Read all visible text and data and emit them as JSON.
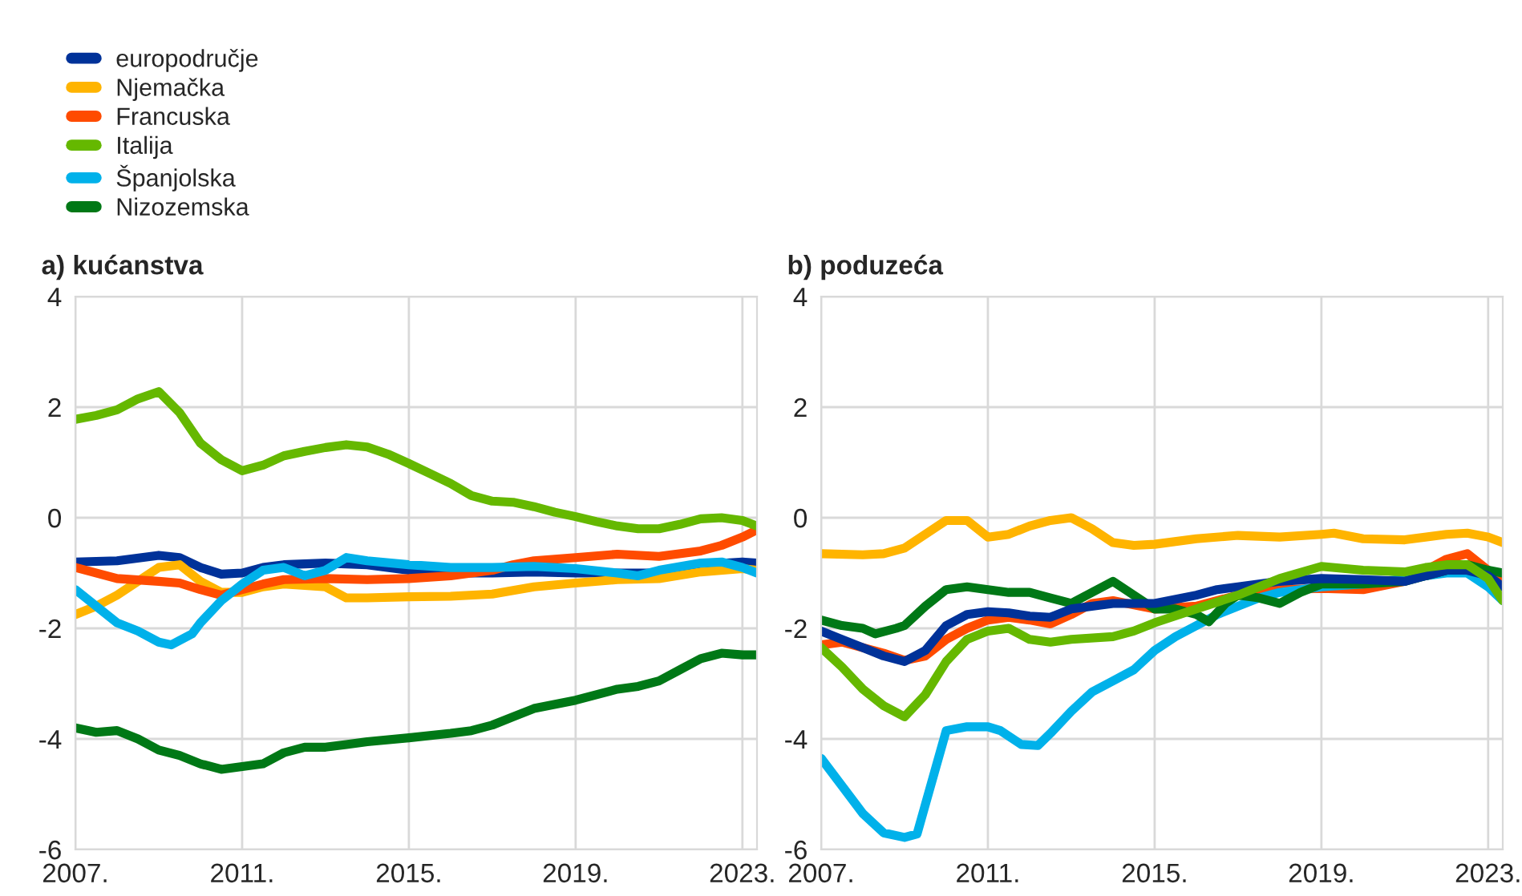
{
  "chart_data": [
    {
      "type": "line",
      "title": "a) kućanstva",
      "legend": "top left",
      "grid": true,
      "xlim": [
        2007,
        2023.35
      ],
      "ylim": [
        -6,
        4
      ],
      "xticks": [
        {
          "value": 2007,
          "label": "2007."
        },
        {
          "value": 2011,
          "label": "2011."
        },
        {
          "value": 2015,
          "label": "2015."
        },
        {
          "value": 2019,
          "label": "2019."
        },
        {
          "value": 2023,
          "label": "2023."
        }
      ],
      "yticks": [
        -6,
        -4,
        -2,
        0,
        2,
        4
      ],
      "series": [
        {
          "name": "europodručje",
          "color": "#003299",
          "x": [
            2007,
            2008,
            2009,
            2009.5,
            2010,
            2010.5,
            2011,
            2011.5,
            2012,
            2013,
            2014,
            2015,
            2016,
            2017,
            2018,
            2019,
            2020,
            2021,
            2022,
            2023,
            2023.35
          ],
          "values": [
            -0.8,
            -0.78,
            -0.68,
            -0.72,
            -0.9,
            -1.02,
            -1.0,
            -0.9,
            -0.85,
            -0.82,
            -0.85,
            -0.95,
            -1.0,
            -1.0,
            -0.98,
            -1.0,
            -1.0,
            -1.0,
            -0.85,
            -0.8,
            -0.82
          ]
        },
        {
          "name": "Njemačka",
          "color": "#ffb400",
          "x": [
            2007,
            2007.5,
            2008,
            2008.5,
            2009,
            2009.5,
            2010,
            2010.5,
            2011,
            2011.5,
            2012,
            2013,
            2013.5,
            2014,
            2015,
            2016,
            2017,
            2018,
            2019,
            2020,
            2021,
            2022,
            2023,
            2023.35
          ],
          "values": [
            -1.75,
            -1.6,
            -1.4,
            -1.15,
            -0.9,
            -0.85,
            -1.15,
            -1.35,
            -1.35,
            -1.25,
            -1.2,
            -1.25,
            -1.45,
            -1.45,
            -1.43,
            -1.42,
            -1.38,
            -1.25,
            -1.18,
            -1.12,
            -1.1,
            -0.98,
            -0.92,
            -0.95
          ]
        },
        {
          "name": "Francuska",
          "color": "#ff4b00",
          "x": [
            2007,
            2008,
            2009,
            2009.5,
            2010,
            2010.5,
            2011,
            2011.5,
            2012,
            2013,
            2014,
            2015,
            2016,
            2017,
            2017.5,
            2018,
            2019,
            2020,
            2021,
            2022,
            2022.5,
            2023,
            2023.35
          ],
          "values": [
            -0.9,
            -1.1,
            -1.15,
            -1.18,
            -1.3,
            -1.4,
            -1.3,
            -1.2,
            -1.12,
            -1.1,
            -1.12,
            -1.1,
            -1.05,
            -0.95,
            -0.85,
            -0.78,
            -0.72,
            -0.66,
            -0.7,
            -0.6,
            -0.5,
            -0.35,
            -0.22
          ]
        },
        {
          "name": "Italija",
          "color": "#65b800",
          "x": [
            2007,
            2007.5,
            2008,
            2008.5,
            2009,
            2009.5,
            2010,
            2010.5,
            2011,
            2011.5,
            2012,
            2012.5,
            2013,
            2013.5,
            2014,
            2014.5,
            2015,
            2015.5,
            2016,
            2016.5,
            2017,
            2017.5,
            2018,
            2018.5,
            2019,
            2019.5,
            2020,
            2020.5,
            2021,
            2021.5,
            2022,
            2022.5,
            2023,
            2023.35
          ],
          "values": [
            1.78,
            1.85,
            1.95,
            2.15,
            2.28,
            1.9,
            1.35,
            1.05,
            0.85,
            0.95,
            1.12,
            1.2,
            1.27,
            1.32,
            1.28,
            1.15,
            0.98,
            0.8,
            0.62,
            0.4,
            0.3,
            0.28,
            0.2,
            0.1,
            0.02,
            -0.07,
            -0.15,
            -0.2,
            -0.2,
            -0.12,
            -0.02,
            0.0,
            -0.05,
            -0.15
          ]
        },
        {
          "name": "Španjolska",
          "color": "#00b1ea",
          "x": [
            2007,
            2007.5,
            2008,
            2008.5,
            2009,
            2009.3,
            2009.8,
            2010,
            2010.5,
            2011,
            2011.5,
            2012,
            2012.5,
            2013,
            2013.5,
            2014,
            2015,
            2016,
            2017,
            2018,
            2019,
            2020,
            2020.5,
            2021,
            2022,
            2022.5,
            2023,
            2023.35
          ],
          "values": [
            -1.3,
            -1.6,
            -1.9,
            -2.05,
            -2.25,
            -2.3,
            -2.1,
            -1.9,
            -1.5,
            -1.2,
            -0.95,
            -0.9,
            -1.05,
            -0.95,
            -0.72,
            -0.78,
            -0.85,
            -0.9,
            -0.9,
            -0.88,
            -0.92,
            -1.0,
            -1.05,
            -0.95,
            -0.82,
            -0.8,
            -0.9,
            -1.0
          ]
        },
        {
          "name": "Nizozemska",
          "color": "#007816",
          "x": [
            2007,
            2007.5,
            2008,
            2008.5,
            2009,
            2009.5,
            2010,
            2010.5,
            2011,
            2011.5,
            2012,
            2012.5,
            2013,
            2013.5,
            2014,
            2015,
            2016,
            2016.5,
            2017,
            2017.5,
            2018,
            2019,
            2020,
            2020.5,
            2021,
            2021.5,
            2022,
            2022.5,
            2023,
            2023.35
          ],
          "values": [
            -3.8,
            -3.88,
            -3.85,
            -4.0,
            -4.2,
            -4.3,
            -4.45,
            -4.55,
            -4.5,
            -4.45,
            -4.25,
            -4.15,
            -4.15,
            -4.1,
            -4.05,
            -3.98,
            -3.9,
            -3.85,
            -3.75,
            -3.6,
            -3.45,
            -3.3,
            -3.1,
            -3.05,
            -2.95,
            -2.75,
            -2.55,
            -2.45,
            -2.48,
            -2.48
          ]
        }
      ]
    },
    {
      "type": "line",
      "title": "b) poduzeća",
      "grid": true,
      "xlim": [
        2007,
        2023.35
      ],
      "ylim": [
        -6,
        4
      ],
      "xticks": [
        {
          "value": 2007,
          "label": "2007."
        },
        {
          "value": 2011,
          "label": "2011."
        },
        {
          "value": 2015,
          "label": "2015."
        },
        {
          "value": 2019,
          "label": "2019."
        },
        {
          "value": 2023,
          "label": "2023."
        }
      ],
      "yticks": [
        -6,
        -4,
        -2,
        0,
        2,
        4
      ],
      "series": [
        {
          "color": "#ffb400",
          "x": [
            2007,
            2008,
            2008.5,
            2009,
            2009.5,
            2010,
            2010.5,
            2011,
            2011.5,
            2012,
            2012.5,
            2013,
            2013.5,
            2014,
            2014.5,
            2015,
            2016,
            2017,
            2018,
            2019,
            2019.3,
            2020,
            2021,
            2022,
            2022.5,
            2023,
            2023.35
          ],
          "values": [
            -0.65,
            -0.67,
            -0.65,
            -0.55,
            -0.3,
            -0.05,
            -0.05,
            -0.35,
            -0.3,
            -0.15,
            -0.05,
            0.0,
            -0.2,
            -0.45,
            -0.5,
            -0.48,
            -0.38,
            -0.32,
            -0.35,
            -0.3,
            -0.28,
            -0.38,
            -0.4,
            -0.3,
            -0.28,
            -0.35,
            -0.45
          ]
        },
        {
          "color": "#ff4b00",
          "x": [
            2007,
            2007.5,
            2008,
            2008.5,
            2009,
            2009.5,
            2010,
            2010.5,
            2011,
            2011.5,
            2012,
            2012.5,
            2013,
            2013.5,
            2014,
            2015,
            2016,
            2017,
            2018,
            2019,
            2020,
            2021,
            2022,
            2022.5,
            2023,
            2023.35
          ],
          "values": [
            -2.3,
            -2.25,
            -2.35,
            -2.45,
            -2.58,
            -2.5,
            -2.2,
            -2.0,
            -1.85,
            -1.8,
            -1.85,
            -1.92,
            -1.75,
            -1.55,
            -1.5,
            -1.65,
            -1.6,
            -1.4,
            -1.3,
            -1.28,
            -1.3,
            -1.15,
            -0.75,
            -0.65,
            -0.95,
            -1.15
          ]
        },
        {
          "color": "#00b1ea",
          "x": [
            2007,
            2007.5,
            2008,
            2008.5,
            2009,
            2009.3,
            2010,
            2010.5,
            2011,
            2011.3,
            2011.8,
            2012.2,
            2012.5,
            2013,
            2013.5,
            2014,
            2014.5,
            2015,
            2015.5,
            2016,
            2016.5,
            2017,
            2017.5,
            2018,
            2019,
            2020,
            2021,
            2022,
            2022.5,
            2023,
            2023.35
          ],
          "values": [
            -4.35,
            -4.85,
            -5.35,
            -5.7,
            -5.78,
            -5.72,
            -3.85,
            -3.78,
            -3.78,
            -3.85,
            -4.1,
            -4.12,
            -3.9,
            -3.5,
            -3.15,
            -2.95,
            -2.75,
            -2.4,
            -2.15,
            -1.95,
            -1.75,
            -1.6,
            -1.45,
            -1.35,
            -1.25,
            -1.2,
            -1.1,
            -1.0,
            -1.0,
            -1.25,
            -1.5
          ]
        },
        {
          "color": "#007816",
          "x": [
            2007,
            2007.5,
            2008,
            2008.3,
            2008.8,
            2009,
            2009.5,
            2010,
            2010.5,
            2011,
            2011.5,
            2012,
            2012.5,
            2013,
            2013.5,
            2014,
            2014.5,
            2015,
            2015.5,
            2016,
            2016.3,
            2016.7,
            2017,
            2017.5,
            2018,
            2018.5,
            2019,
            2020,
            2021,
            2022,
            2022.5,
            2023,
            2023.35
          ],
          "values": [
            -1.85,
            -1.95,
            -2.0,
            -2.1,
            -2.0,
            -1.95,
            -1.6,
            -1.3,
            -1.25,
            -1.3,
            -1.35,
            -1.35,
            -1.45,
            -1.55,
            -1.35,
            -1.15,
            -1.4,
            -1.65,
            -1.65,
            -1.75,
            -1.88,
            -1.55,
            -1.4,
            -1.45,
            -1.55,
            -1.35,
            -1.2,
            -1.2,
            -1.15,
            -0.95,
            -0.85,
            -0.95,
            -1.0
          ]
        },
        {
          "color": "#003299",
          "x": [
            2007,
            2007.5,
            2008,
            2008.5,
            2009,
            2009.5,
            2010,
            2010.5,
            2011,
            2011.5,
            2012,
            2012.5,
            2013,
            2014,
            2015,
            2016,
            2016.5,
            2017,
            2018,
            2019,
            2020,
            2021,
            2022,
            2022.5,
            2023,
            2023.35
          ],
          "values": [
            -2.05,
            -2.2,
            -2.35,
            -2.5,
            -2.6,
            -2.4,
            -1.95,
            -1.75,
            -1.7,
            -1.72,
            -1.78,
            -1.8,
            -1.65,
            -1.55,
            -1.55,
            -1.4,
            -1.3,
            -1.25,
            -1.15,
            -1.1,
            -1.12,
            -1.15,
            -0.95,
            -0.95,
            -1.05,
            -1.25
          ]
        },
        {
          "color": "#65b800",
          "x": [
            2007,
            2007.5,
            2008,
            2008.5,
            2009,
            2009.5,
            2010,
            2010.5,
            2011,
            2011.5,
            2012,
            2012.5,
            2013,
            2014,
            2014.5,
            2015,
            2016,
            2017,
            2018,
            2019,
            2020,
            2021,
            2021.5,
            2022,
            2022.5,
            2023,
            2023.35
          ],
          "values": [
            -2.35,
            -2.7,
            -3.1,
            -3.4,
            -3.6,
            -3.2,
            -2.6,
            -2.2,
            -2.05,
            -2.0,
            -2.2,
            -2.25,
            -2.2,
            -2.15,
            -2.05,
            -1.9,
            -1.65,
            -1.4,
            -1.1,
            -0.88,
            -0.95,
            -0.98,
            -0.9,
            -0.85,
            -0.85,
            -1.1,
            -1.5
          ]
        }
      ]
    }
  ]
}
